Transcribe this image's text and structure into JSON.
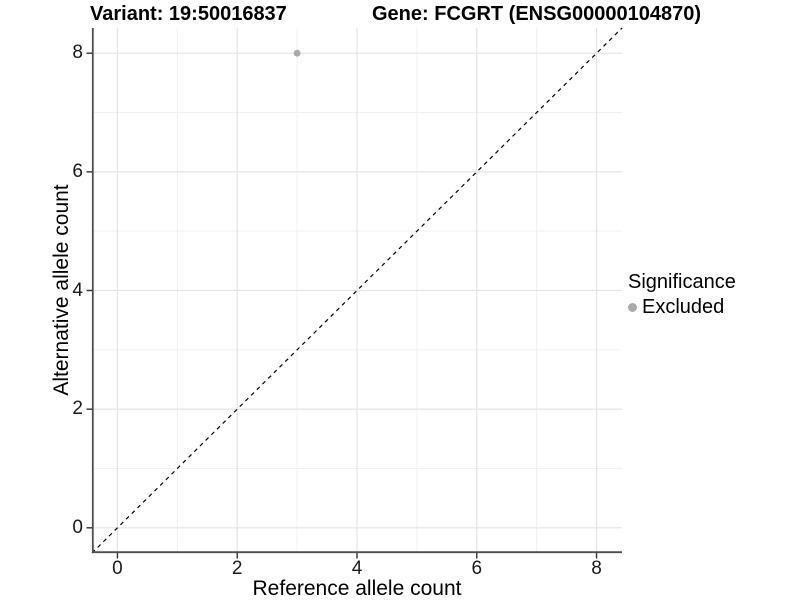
{
  "header": {
    "variant_title": "Variant: 19:50016837",
    "gene_title": "Gene: FCGRT (ENSG00000104870)"
  },
  "axes": {
    "x_title": "Reference allele count",
    "y_title": "Alternative allele count"
  },
  "legend": {
    "title": "Significance",
    "items": [
      {
        "label": "Excluded",
        "color": "#aaaaaa"
      }
    ]
  },
  "chart_data": {
    "type": "scatter",
    "title": "Variant: 19:50016837 | Gene: FCGRT (ENSG00000104870)",
    "xlabel": "Reference allele count",
    "ylabel": "Alternative allele count",
    "xlim": [
      -0.425,
      8.425
    ],
    "ylim": [
      -0.425,
      8.425
    ],
    "x_ticks": [
      0,
      2,
      4,
      6,
      8
    ],
    "y_ticks": [
      0,
      2,
      4,
      6,
      8
    ],
    "x_minor_ticks": [
      1,
      3,
      5,
      7
    ],
    "y_minor_ticks": [
      1,
      3,
      5,
      7
    ],
    "grid": true,
    "legend_position": "right",
    "series": [
      {
        "name": "Excluded",
        "color": "#aaaaaa",
        "points": [
          {
            "x": 3,
            "y": 8
          }
        ]
      }
    ],
    "reference_line": {
      "kind": "identity-diagonal",
      "style": "dashed",
      "x1": -0.425,
      "y1": -0.425,
      "x2": 8.425,
      "y2": 8.425,
      "color": "#000000"
    },
    "colors": {
      "background": "#ffffff",
      "grid_major": "#e4e4e4",
      "grid_minor": "#f0f0f0",
      "axis_line": "#4d4d4d",
      "tick_mark": "#333333",
      "point": "#aaaaaa"
    }
  }
}
